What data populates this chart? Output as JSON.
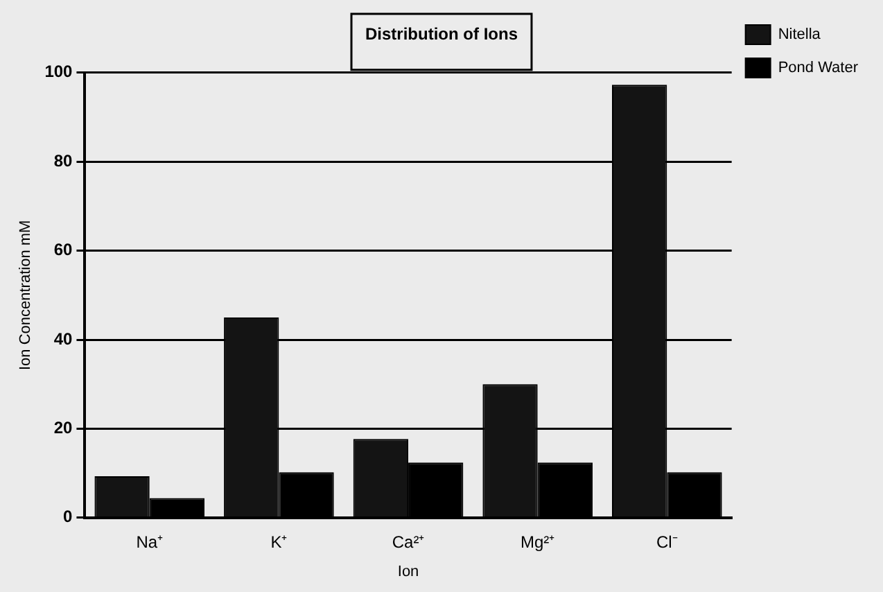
{
  "chart_data": {
    "type": "bar",
    "title": "Distribution of Ions",
    "xlabel": "Ion",
    "ylabel": "Ion Concentration mM",
    "categories": [
      "Na⁺",
      "K⁺",
      "Ca²⁺",
      "Mg²⁺",
      "Cl⁻"
    ],
    "series": [
      {
        "name": "Nitella",
        "color": "#141414",
        "values": [
          9.3,
          45,
          17.7,
          30,
          97.3
        ]
      },
      {
        "name": "Pond Water",
        "color": "#000000",
        "values": [
          4.4,
          10.2,
          12.4,
          12.4,
          10.2
        ]
      }
    ],
    "ylim": [
      0,
      100
    ],
    "yticks": [
      0,
      20,
      40,
      60,
      80,
      100
    ],
    "grid": "y",
    "legend": "top right"
  }
}
